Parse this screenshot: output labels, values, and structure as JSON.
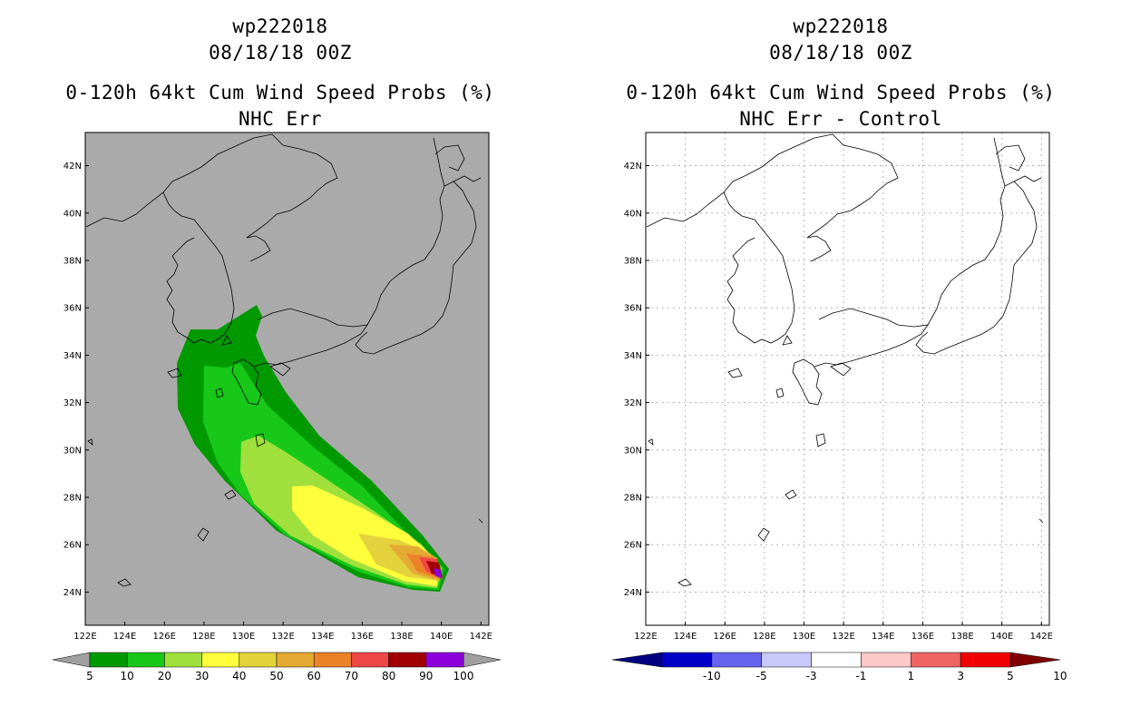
{
  "panels": [
    {
      "id": "left",
      "storm_id": "wp222018",
      "datetime": "08/18/18 00Z",
      "product": "0-120h 64kt Cum Wind Speed Probs (%)",
      "subtitle": "NHC Err",
      "colorbar": {
        "labels": [
          "5",
          "10",
          "20",
          "30",
          "40",
          "50",
          "60",
          "70",
          "80",
          "90",
          "100"
        ],
        "colors": [
          "#009a00",
          "#18c818",
          "#9fe03c",
          "#ffff3c",
          "#e4d23c",
          "#e4aa32",
          "#ec8228",
          "#f04646",
          "#a00000",
          "#8c00dc"
        ],
        "end_color": "#a0a0a0"
      }
    },
    {
      "id": "right",
      "storm_id": "wp222018",
      "datetime": "08/18/18 00Z",
      "product": "0-120h 64kt Cum Wind Speed Probs (%)",
      "subtitle": "NHC Err - Control",
      "colorbar": {
        "labels": [
          "-10",
          "-5",
          "-3",
          "-1",
          "1",
          "3",
          "5",
          "10"
        ],
        "colors": [
          "#0000c8",
          "#6464f0",
          "#c8c8fa",
          "#ffffff",
          "#ffc8c8",
          "#f06464",
          "#f00000"
        ],
        "low_end": "#000080",
        "high_end": "#800000"
      }
    }
  ],
  "map": {
    "lat_labels": [
      "42N",
      "40N",
      "38N",
      "36N",
      "34N",
      "32N",
      "30N",
      "28N",
      "26N",
      "24N"
    ],
    "lon_labels": [
      "122E",
      "124E",
      "126E",
      "128E",
      "130E",
      "132E",
      "134E",
      "136E",
      "138E",
      "140E",
      "142E"
    ],
    "left_background": "#aaaaaa",
    "right_background": "#ffffff"
  }
}
